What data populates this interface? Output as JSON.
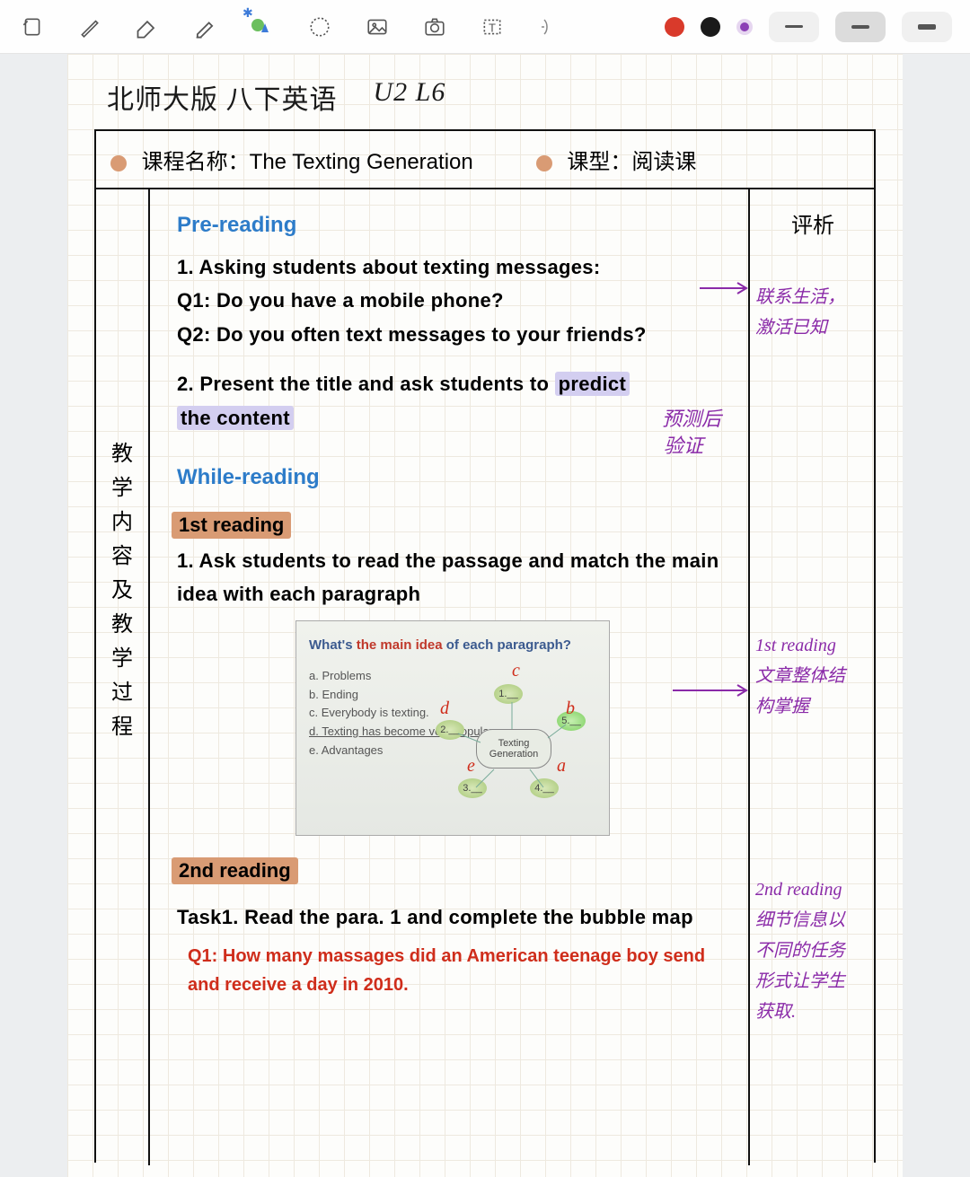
{
  "toolbar": {
    "colors": {
      "red": "#d93a2b",
      "black": "#1a1a1a",
      "purple": "#8b3fb5"
    },
    "dash_colors": {
      "normal": "#555555",
      "active_bg": "#dcdcdc"
    }
  },
  "handwritten_header": {
    "left": "北师大版 八下英语",
    "right": "U2 L6"
  },
  "header_row": {
    "dot_color": "#d99b74",
    "course_label": "课程名称：",
    "course_value": "The Texting Generation",
    "type_label": "课型：",
    "type_value": "阅读课"
  },
  "left_column_label": "教学内容及教学过程",
  "notes_heading": "评析",
  "content": {
    "pre_reading_heading": "Pre-reading",
    "line1": "1. Asking students about texting messages:",
    "q1": "Q1: Do you have a mobile phone?",
    "q2": "Q2: Do you often text messages to your friends?",
    "line2_a": "2. Present the title and ask students to ",
    "line2_hl1": "predict",
    "line2_hl2": "the content",
    "annot_predict_1": "预测后",
    "annot_predict_2": "验证",
    "while_reading_heading": "While-reading",
    "reading1_label": "1st reading",
    "reading1_text": "1. Ask students to read the passage and match the main idea with each paragraph",
    "reading2_label": "2nd reading",
    "task1": "Task1. Read the para. 1 and complete the bubble map",
    "red_q1": "Q1: How many massages did an American teenage boy send and receive a day in 2010."
  },
  "embedded": {
    "title_a": "What's ",
    "title_b": "the main idea",
    "title_c": " of each paragraph?",
    "items": [
      "a. Problems",
      "b. Ending",
      "c. Everybody is texting.",
      "d. Texting has become very popular.",
      "e. Advantages"
    ],
    "center": "Texting Generation",
    "bubble_labels": [
      "1.__",
      "2.__",
      "3.__",
      "4.__",
      "5.__"
    ],
    "hand_letters": [
      "c",
      "d",
      "b",
      "e",
      "a"
    ]
  },
  "side_notes": {
    "n1a": "联系生活，",
    "n1b": "激活已知",
    "n2a": "1st reading",
    "n2b": "文章整体结",
    "n2c": "构掌握",
    "n3a": "2nd reading",
    "n3b": "细节信息以",
    "n3c": "不同的任务",
    "n3d": "形式让学生",
    "n3e": "获取."
  },
  "colors": {
    "section_heading": "#2d7cc9",
    "highlight_purple": "#d3cef0",
    "highlight_orange": "#d99b74",
    "annotation_purple": "#8a2aa8",
    "handwriting_red": "#cf2d1b"
  }
}
